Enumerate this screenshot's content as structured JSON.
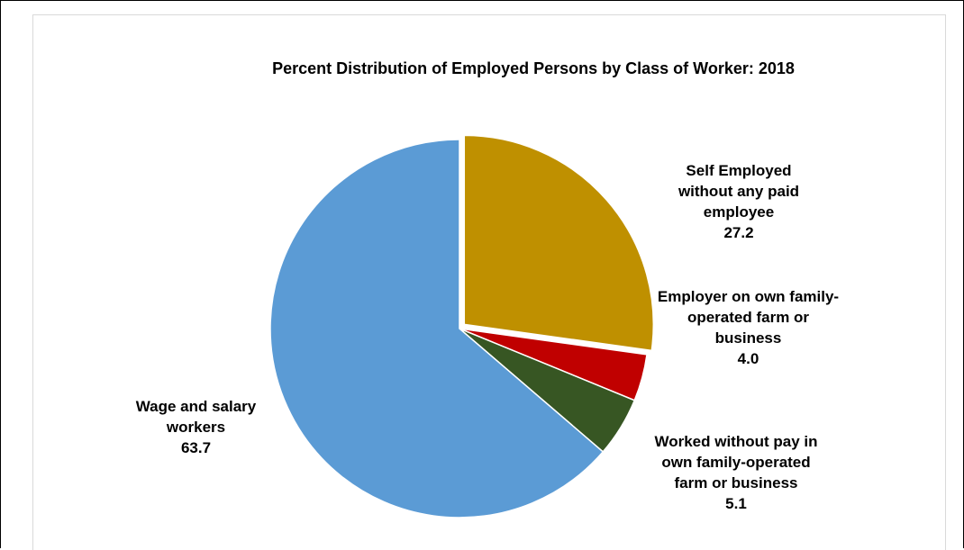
{
  "chart_data": {
    "type": "pie",
    "title": "Percent Distribution of Employed Persons by Class of Worker:  2018",
    "categories": [
      "Self Employed without any paid employee",
      "Employer on own family-operated farm or business",
      "Worked without pay in own family-operated farm or business",
      "Wage and salary workers"
    ],
    "values": [
      27.2,
      4.0,
      5.1,
      63.7
    ],
    "value_labels": [
      "27.2",
      "4.0",
      "5.1",
      "63.7"
    ],
    "colors": [
      "#bf9000",
      "#c00000",
      "#375623",
      "#5b9bd5"
    ]
  }
}
